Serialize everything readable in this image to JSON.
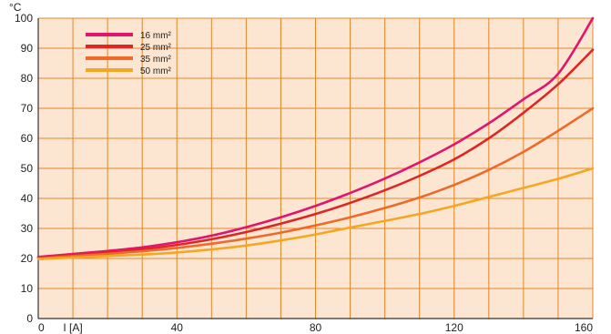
{
  "chart_data": {
    "type": "line",
    "y_unit_label": "°C",
    "x_axis_label": "I [A]",
    "xlim": [
      0,
      160
    ],
    "ylim": [
      0,
      100
    ],
    "x_ticks": [
      0,
      40,
      80,
      120,
      160
    ],
    "y_ticks": [
      0,
      10,
      20,
      30,
      40,
      50,
      60,
      70,
      80,
      90,
      100
    ],
    "x_minor_step": 10,
    "y_minor_step": 10,
    "grid": true,
    "legend_position": "top-left",
    "colors": {
      "plot_background": "#fce6d1",
      "grid": "#e2862a",
      "axis": "#333333"
    },
    "series": [
      {
        "name": "16 mm²",
        "color": "#e0156f",
        "x": [
          0,
          10,
          20,
          30,
          40,
          50,
          60,
          70,
          80,
          90,
          100,
          110,
          120,
          130,
          140,
          150,
          160
        ],
        "y": [
          20.5,
          21.5,
          22.5,
          23.7,
          25.4,
          27.6,
          30.4,
          33.7,
          37.5,
          41.8,
          46.6,
          52.0,
          58.0,
          65.0,
          73.0,
          81.5,
          100
        ]
      },
      {
        "name": "25 mm²",
        "color": "#dd2626",
        "x": [
          0,
          10,
          20,
          30,
          40,
          50,
          60,
          70,
          80,
          90,
          100,
          110,
          120,
          130,
          140,
          150,
          160
        ],
        "y": [
          20.3,
          21.2,
          22.0,
          23.0,
          24.5,
          26.4,
          28.8,
          31.6,
          34.8,
          38.5,
          42.7,
          47.5,
          53.0,
          60.0,
          68.5,
          78.0,
          89.5
        ]
      },
      {
        "name": "35 mm²",
        "color": "#ee6a2a",
        "x": [
          0,
          10,
          20,
          30,
          40,
          50,
          60,
          70,
          80,
          90,
          100,
          110,
          120,
          130,
          140,
          150,
          160
        ],
        "y": [
          20.0,
          20.8,
          21.5,
          22.4,
          23.5,
          24.9,
          26.6,
          28.6,
          31.0,
          33.7,
          36.8,
          40.3,
          44.5,
          49.5,
          55.5,
          62.5,
          70
        ]
      },
      {
        "name": "50 mm²",
        "color": "#f5a623",
        "x": [
          0,
          10,
          20,
          30,
          40,
          50,
          60,
          70,
          80,
          90,
          100,
          110,
          120,
          130,
          140,
          150,
          160
        ],
        "y": [
          19.8,
          20.3,
          20.8,
          21.3,
          22.0,
          23.0,
          24.3,
          26.0,
          28.0,
          30.3,
          32.5,
          34.8,
          37.5,
          40.5,
          43.5,
          46.5,
          50
        ]
      }
    ]
  }
}
